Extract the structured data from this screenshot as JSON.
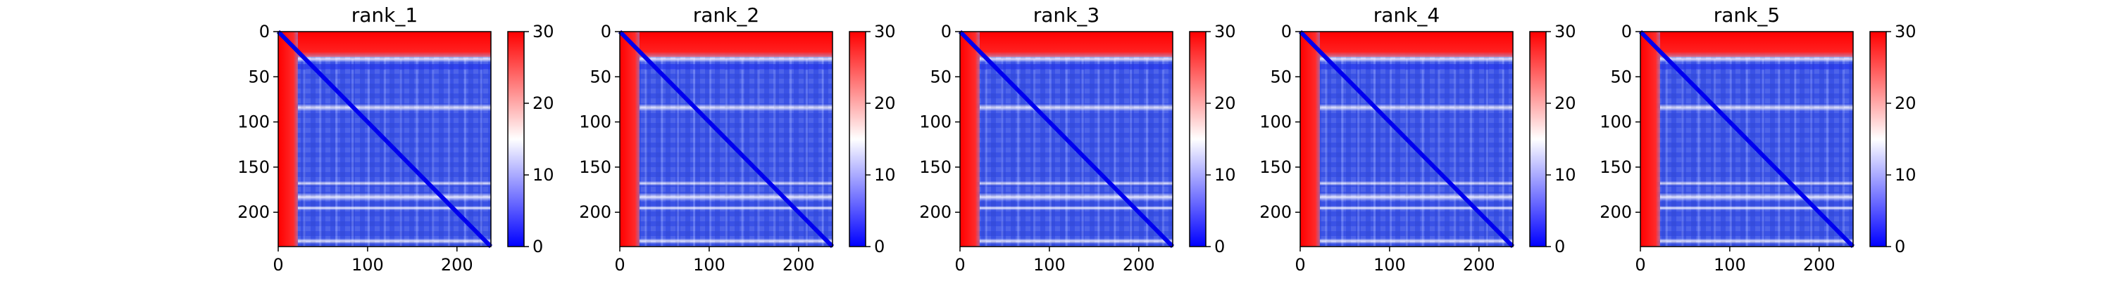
{
  "chart_data": [
    {
      "type": "heatmap",
      "title": "rank_1",
      "xlim": [
        0,
        238
      ],
      "ylim": [
        238,
        0
      ],
      "xticks": [
        0,
        100,
        200
      ],
      "yticks": [
        0,
        50,
        100,
        150,
        200
      ],
      "colorbar": {
        "min": 0,
        "max": 30,
        "ticks": [
          0,
          10,
          20,
          30
        ],
        "colormap": [
          "#0000ff",
          "#ffffff",
          "#ff0000"
        ]
      }
    },
    {
      "type": "heatmap",
      "title": "rank_2",
      "xlim": [
        0,
        238
      ],
      "ylim": [
        238,
        0
      ],
      "xticks": [
        0,
        100,
        200
      ],
      "yticks": [
        0,
        50,
        100,
        150,
        200
      ],
      "colorbar": {
        "min": 0,
        "max": 30,
        "ticks": [
          0,
          10,
          20,
          30
        ],
        "colormap": [
          "#0000ff",
          "#ffffff",
          "#ff0000"
        ]
      }
    },
    {
      "type": "heatmap",
      "title": "rank_3",
      "xlim": [
        0,
        238
      ],
      "ylim": [
        238,
        0
      ],
      "xticks": [
        0,
        100,
        200
      ],
      "yticks": [
        0,
        50,
        100,
        150,
        200
      ],
      "colorbar": {
        "min": 0,
        "max": 30,
        "ticks": [
          0,
          10,
          20,
          30
        ],
        "colormap": [
          "#0000ff",
          "#ffffff",
          "#ff0000"
        ]
      }
    },
    {
      "type": "heatmap",
      "title": "rank_4",
      "xlim": [
        0,
        238
      ],
      "ylim": [
        238,
        0
      ],
      "xticks": [
        0,
        100,
        200
      ],
      "yticks": [
        0,
        50,
        100,
        150,
        200
      ],
      "colorbar": {
        "min": 0,
        "max": 30,
        "ticks": [
          0,
          10,
          20,
          30
        ],
        "colormap": [
          "#0000ff",
          "#ffffff",
          "#ff0000"
        ]
      }
    },
    {
      "type": "heatmap",
      "title": "rank_5",
      "xlim": [
        0,
        238
      ],
      "ylim": [
        238,
        0
      ],
      "xticks": [
        0,
        100,
        200
      ],
      "yticks": [
        0,
        50,
        100,
        150,
        200
      ],
      "colorbar": {
        "min": 0,
        "max": 30,
        "ticks": [
          0,
          10,
          20,
          30
        ],
        "colormap": [
          "#0000ff",
          "#ffffff",
          "#ff0000"
        ]
      }
    }
  ]
}
